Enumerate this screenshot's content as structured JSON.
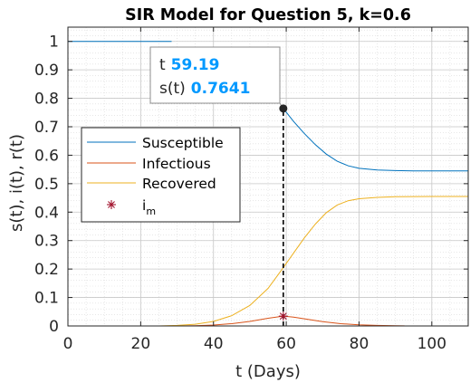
{
  "chart_data": {
    "type": "line",
    "title": "SIR Model for Question 5, k=0.6",
    "xlabel": "t (Days)",
    "ylabel": "s(t), i(t), r(t)",
    "xlim": [
      0,
      110
    ],
    "ylim": [
      0,
      1.05
    ],
    "xticks": [
      0,
      20,
      40,
      60,
      80,
      100
    ],
    "yticks": [
      0,
      0.1,
      0.2,
      0.3,
      0.4,
      0.5,
      0.6,
      0.7,
      0.8,
      0.9,
      1
    ],
    "grid": "on (major and minor, dotted)",
    "legend_placement": "middle-left",
    "series": [
      {
        "name": "Susceptible",
        "color": "#0072BD",
        "x": [
          0,
          28,
          28.5
        ],
        "y": [
          1,
          1,
          1
        ]
      },
      {
        "name": "Susceptible",
        "color": "#0072BD",
        "x": [
          59.19,
          62,
          65,
          68,
          71,
          74,
          77,
          80,
          85,
          90,
          95,
          100,
          105,
          110
        ],
        "y": [
          0.7641,
          0.719,
          0.676,
          0.637,
          0.604,
          0.579,
          0.563,
          0.554,
          0.548,
          0.546,
          0.545,
          0.545,
          0.545,
          0.545
        ]
      },
      {
        "name": "Infectious",
        "color": "#D95319",
        "x": [
          28,
          35,
          40,
          45,
          50,
          55,
          59.19,
          62,
          66,
          70,
          75,
          80,
          85,
          90,
          92.5
        ],
        "y": [
          0,
          0.001,
          0.003,
          0.008,
          0.016,
          0.027,
          0.0345,
          0.031,
          0.023,
          0.015,
          0.008,
          0.004,
          0.002,
          0.001,
          0.0005
        ]
      },
      {
        "name": "Recovered",
        "color": "#EDB120",
        "x": [
          0,
          25,
          30,
          35,
          40,
          45,
          50,
          55,
          59.19,
          62,
          65,
          68,
          71,
          74,
          77,
          80,
          85,
          90,
          100,
          110
        ],
        "y": [
          0,
          0,
          0.002,
          0.006,
          0.016,
          0.036,
          0.072,
          0.132,
          0.205,
          0.256,
          0.31,
          0.358,
          0.398,
          0.425,
          0.44,
          0.447,
          0.452,
          0.454,
          0.455,
          0.455
        ]
      }
    ],
    "marker_series": {
      "name": "i",
      "name_sub": "m",
      "color": "#A2142F",
      "x": [
        59.19
      ],
      "y": [
        0.0345
      ]
    },
    "datatip": {
      "x": 59.19,
      "y": 0.7641,
      "x_label": "t",
      "x_value": "59.19",
      "y_label": "s(t)",
      "y_value": "0.7641",
      "value_color": "#0099FF"
    },
    "reference_line": {
      "x": 59.19,
      "y_from": 0,
      "y_to": 0.7641,
      "style": "dashed",
      "color": "#000000"
    }
  }
}
